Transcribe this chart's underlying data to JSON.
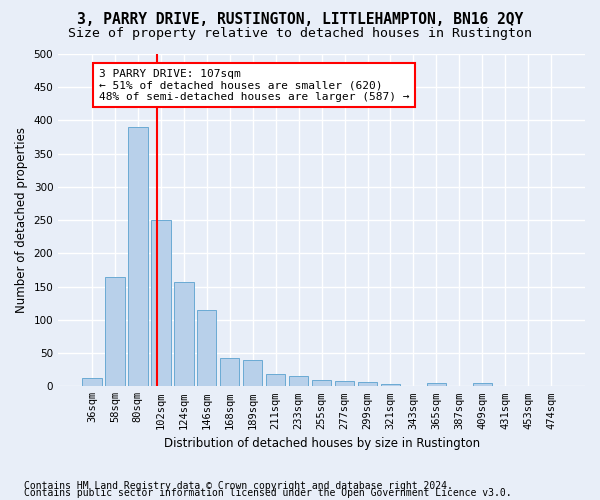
{
  "title": "3, PARRY DRIVE, RUSTINGTON, LITTLEHAMPTON, BN16 2QY",
  "subtitle": "Size of property relative to detached houses in Rustington",
  "xlabel": "Distribution of detached houses by size in Rustington",
  "ylabel": "Number of detached properties",
  "bar_values": [
    13,
    165,
    390,
    250,
    157,
    115,
    43,
    40,
    19,
    16,
    10,
    8,
    6,
    4,
    0,
    5,
    0,
    5,
    0,
    0,
    0
  ],
  "bar_labels": [
    "36sqm",
    "58sqm",
    "80sqm",
    "102sqm",
    "124sqm",
    "146sqm",
    "168sqm",
    "189sqm",
    "211sqm",
    "233sqm",
    "255sqm",
    "277sqm",
    "299sqm",
    "321sqm",
    "343sqm",
    "365sqm",
    "387sqm",
    "409sqm",
    "431sqm",
    "453sqm",
    "474sqm"
  ],
  "bar_color": "#b8d0ea",
  "bar_edge_color": "#6aaad4",
  "vline_x": 2.85,
  "vline_color": "red",
  "annotation_text": "3 PARRY DRIVE: 107sqm\n← 51% of detached houses are smaller (620)\n48% of semi-detached houses are larger (587) →",
  "annotation_box_color": "white",
  "annotation_box_edge": "red",
  "ylim": [
    0,
    500
  ],
  "yticks": [
    0,
    50,
    100,
    150,
    200,
    250,
    300,
    350,
    400,
    450,
    500
  ],
  "footer1": "Contains HM Land Registry data © Crown copyright and database right 2024.",
  "footer2": "Contains public sector information licensed under the Open Government Licence v3.0.",
  "bg_color": "#e8eef8",
  "grid_color": "white",
  "title_fontsize": 10.5,
  "subtitle_fontsize": 9.5,
  "axis_label_fontsize": 8.5,
  "tick_fontsize": 7.5,
  "annotation_fontsize": 8,
  "footer_fontsize": 7
}
